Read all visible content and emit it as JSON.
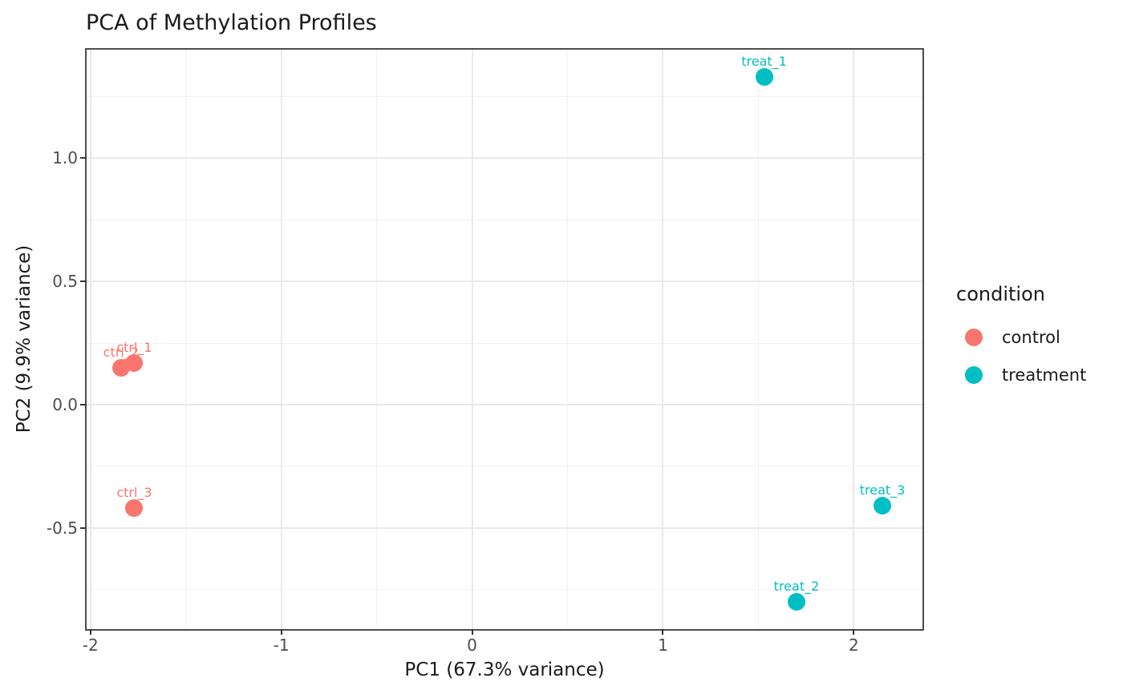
{
  "title": "PCA of Methylation Profiles",
  "colors": {
    "control": "#F8766D",
    "treatment": "#00BFC4",
    "grid_major": "#e9e9e9",
    "grid_minor": "#f1f1f1",
    "panel_border": "#4d4d4d",
    "tick_mark": "#333333",
    "tick_label": "#4d4d4d",
    "text": "#1a1a1a"
  },
  "legend": {
    "title": "condition",
    "items": [
      {
        "label": "control",
        "color": "#F8766D"
      },
      {
        "label": "treatment",
        "color": "#00BFC4"
      }
    ]
  },
  "chart_data": {
    "type": "scatter",
    "title": "PCA of Methylation Profiles",
    "xlabel": "PC1 (67.3% variance)",
    "ylabel": "PC2 (9.9% variance)",
    "xlim": [
      -2.02,
      2.36
    ],
    "ylim": [
      -0.91,
      1.44
    ],
    "x_breaks": [
      -2,
      -1,
      0,
      1,
      2
    ],
    "x_tick_labels": [
      "-2",
      "-1",
      "0",
      "1",
      "2"
    ],
    "x_minor_breaks": [
      -1.5,
      -0.5,
      0.5,
      1.5
    ],
    "y_breaks": [
      1.0,
      0.5,
      0.0,
      -0.5
    ],
    "y_tick_labels": [
      "1.0",
      "0.5",
      "0.0",
      "-0.5"
    ],
    "y_minor_breaks": [
      1.25,
      0.75,
      0.25,
      -0.25,
      -0.75
    ],
    "grid": true,
    "legend_position": "right",
    "legend_title": "condition",
    "series": [
      {
        "name": "control",
        "color": "#F8766D",
        "points": [
          {
            "label": "ctrl_1",
            "x": -1.77,
            "y": 0.17
          },
          {
            "label": "ctrl_2",
            "x": -1.84,
            "y": 0.15
          },
          {
            "label": "ctrl_3",
            "x": -1.77,
            "y": -0.42
          }
        ]
      },
      {
        "name": "treatment",
        "color": "#00BFC4",
        "points": [
          {
            "label": "treat_1",
            "x": 1.53,
            "y": 1.33
          },
          {
            "label": "treat_2",
            "x": 1.7,
            "y": -0.8
          },
          {
            "label": "treat_3",
            "x": 2.15,
            "y": -0.41
          }
        ]
      }
    ]
  }
}
